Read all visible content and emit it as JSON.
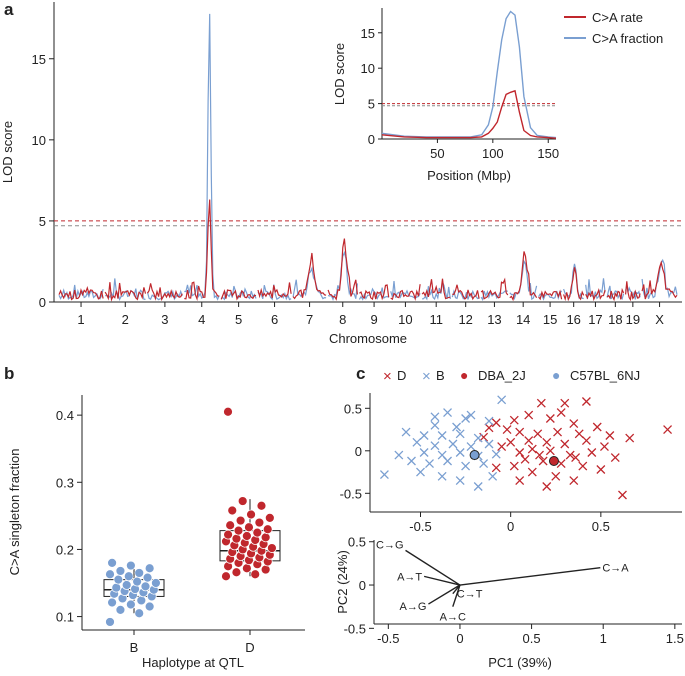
{
  "chart_data": [
    {
      "panel": "a",
      "type": "line",
      "ylabel": "LOD score",
      "xlabel": "Chromosome",
      "ylim": [
        0,
        18.5
      ],
      "yticks": [
        0,
        5,
        10,
        15
      ],
      "chromosomes": [
        "1",
        "2",
        "3",
        "4",
        "5",
        "6",
        "7",
        "8",
        "9",
        "10",
        "11",
        "12",
        "13",
        "14",
        "15",
        "16",
        "17",
        "18",
        "19",
        "X"
      ],
      "threshold_red": 5.0,
      "threshold_gray": 4.7,
      "series": [
        {
          "name": "C>A rate",
          "color": "#c0272d"
        },
        {
          "name": "C>A fraction",
          "color": "#7a9fd1"
        }
      ],
      "peaks": [
        {
          "chrom": "4",
          "fraction": 18.0,
          "rate": 6.8
        },
        {
          "chrom": "7",
          "fraction": 2.0,
          "rate": 2.4
        },
        {
          "chrom": "8",
          "fraction": 3.0,
          "rate": 3.4
        },
        {
          "chrom": "14",
          "fraction": 2.4,
          "rate": 3.0
        },
        {
          "chrom": "16",
          "fraction": 2.2,
          "rate": 1.9
        },
        {
          "chrom": "X",
          "fraction": 2.0,
          "rate": 2.1
        }
      ]
    },
    {
      "panel": "a-inset",
      "type": "line",
      "xlabel": "Position (Mbp)",
      "ylabel": "LOD score",
      "xlim": [
        0,
        157
      ],
      "ylim": [
        0,
        18.5
      ],
      "xticks": [
        50,
        100,
        150
      ],
      "yticks": [
        0,
        5,
        10,
        15
      ],
      "series": [
        {
          "name": "C>A rate",
          "color": "#c0272d",
          "x": [
            0,
            20,
            40,
            60,
            80,
            90,
            96,
            100,
            104,
            108,
            112,
            116,
            120,
            124,
            128,
            134,
            140,
            150,
            157
          ],
          "y": [
            0.6,
            0.3,
            0.2,
            0.2,
            0.2,
            0.3,
            0.8,
            1.5,
            2.4,
            4.5,
            6.3,
            6.6,
            6.8,
            3.8,
            1.2,
            0.5,
            0.3,
            0.2,
            0.1
          ]
        },
        {
          "name": "C>A fraction",
          "color": "#7a9fd1",
          "x": [
            0,
            20,
            40,
            60,
            80,
            90,
            96,
            100,
            104,
            108,
            112,
            116,
            120,
            124,
            128,
            134,
            140,
            150,
            157
          ],
          "y": [
            0.8,
            0.4,
            0.3,
            0.3,
            0.3,
            0.6,
            2.0,
            4.5,
            9.5,
            14.0,
            17.0,
            18.0,
            17.5,
            13.0,
            6.0,
            1.6,
            0.5,
            0.3,
            0.2
          ]
        }
      ]
    },
    {
      "panel": "b",
      "type": "boxplot",
      "xlabel": "Haplotype at QTL",
      "ylabel": "C>A singleton fraction",
      "ylim": [
        0.08,
        0.43
      ],
      "yticks": [
        0.1,
        0.2,
        0.3,
        0.4
      ],
      "groups": [
        {
          "name": "B",
          "color": "#7a9fd1",
          "q1": 0.13,
          "median": 0.14,
          "q3": 0.155,
          "min": 0.105,
          "max": 0.178,
          "points": [
            0.092,
            0.105,
            0.11,
            0.115,
            0.118,
            0.121,
            0.124,
            0.127,
            0.13,
            0.132,
            0.134,
            0.136,
            0.138,
            0.14,
            0.141,
            0.143,
            0.145,
            0.147,
            0.15,
            0.152,
            0.155,
            0.158,
            0.16,
            0.163,
            0.165,
            0.168,
            0.172,
            0.176,
            0.18
          ]
        },
        {
          "name": "D",
          "color": "#c0272d",
          "q1": 0.183,
          "median": 0.198,
          "q3": 0.228,
          "min": 0.16,
          "max": 0.275,
          "points": [
            0.16,
            0.163,
            0.166,
            0.17,
            0.172,
            0.175,
            0.178,
            0.18,
            0.182,
            0.184,
            0.186,
            0.188,
            0.19,
            0.192,
            0.194,
            0.196,
            0.198,
            0.2,
            0.202,
            0.204,
            0.206,
            0.208,
            0.21,
            0.212,
            0.214,
            0.216,
            0.218,
            0.22,
            0.222,
            0.225,
            0.228,
            0.23,
            0.233,
            0.236,
            0.24,
            0.243,
            0.247,
            0.252,
            0.258,
            0.265,
            0.272,
            0.405
          ]
        }
      ]
    },
    {
      "panel": "c-top",
      "type": "scatter",
      "legend": [
        "D",
        "B",
        "DBA_2J",
        "C57BL_6NJ"
      ],
      "legend_markers": [
        "×",
        "×",
        "●",
        "●"
      ],
      "xlim": [
        -0.78,
        0.95
      ],
      "ylim": [
        -0.72,
        0.68
      ],
      "xticks": [
        -0.5,
        0,
        0.5
      ],
      "yticks": [
        -0.5,
        0,
        0.5
      ],
      "series": [
        {
          "name": "D",
          "color": "#c0272d",
          "marker": "x",
          "points": [
            [
              0.3,
              0.56
            ],
            [
              0.17,
              0.56
            ],
            [
              0.1,
              0.42
            ],
            [
              0.02,
              0.36
            ],
            [
              0.22,
              0.38
            ],
            [
              0.35,
              0.32
            ],
            [
              0.48,
              0.28
            ],
            [
              -0.12,
              0.27
            ],
            [
              -0.08,
              0.33
            ],
            [
              0.05,
              0.22
            ],
            [
              0.15,
              0.2
            ],
            [
              0.26,
              0.22
            ],
            [
              0.38,
              0.2
            ],
            [
              0.55,
              0.18
            ],
            [
              0.66,
              0.15
            ],
            [
              0.0,
              0.1
            ],
            [
              0.1,
              0.12
            ],
            [
              0.2,
              0.1
            ],
            [
              0.3,
              0.08
            ],
            [
              0.42,
              0.12
            ],
            [
              0.52,
              0.05
            ],
            [
              -0.05,
              0.05
            ],
            [
              0.05,
              -0.02
            ],
            [
              0.12,
              0.02
            ],
            [
              0.22,
              0.0
            ],
            [
              0.33,
              -0.05
            ],
            [
              0.45,
              -0.02
            ],
            [
              0.58,
              -0.08
            ],
            [
              0.08,
              -0.1
            ],
            [
              0.18,
              -0.12
            ],
            [
              0.28,
              -0.15
            ],
            [
              0.4,
              -0.18
            ],
            [
              0.5,
              -0.22
            ],
            [
              0.02,
              -0.18
            ],
            [
              0.12,
              -0.25
            ],
            [
              0.25,
              -0.3
            ],
            [
              0.35,
              -0.35
            ],
            [
              -0.08,
              -0.2
            ],
            [
              0.05,
              -0.35
            ],
            [
              0.2,
              -0.42
            ],
            [
              0.62,
              -0.52
            ],
            [
              0.87,
              0.25
            ],
            [
              -0.15,
              0.16
            ],
            [
              0.42,
              0.58
            ],
            [
              0.28,
              0.45
            ],
            [
              -0.02,
              0.25
            ],
            [
              0.36,
              -0.08
            ],
            [
              0.16,
              -0.05
            ]
          ]
        },
        {
          "name": "B",
          "color": "#7a9fd1",
          "marker": "x",
          "points": [
            [
              -0.05,
              0.6
            ],
            [
              -0.35,
              0.45
            ],
            [
              -0.25,
              0.38
            ],
            [
              -0.42,
              0.3
            ],
            [
              -0.58,
              0.22
            ],
            [
              -0.48,
              0.18
            ],
            [
              -0.38,
              0.18
            ],
            [
              -0.28,
              0.2
            ],
            [
              -0.18,
              0.15
            ],
            [
              -0.52,
              0.1
            ],
            [
              -0.42,
              0.06
            ],
            [
              -0.32,
              0.08
            ],
            [
              -0.22,
              0.05
            ],
            [
              -0.12,
              0.08
            ],
            [
              -0.62,
              -0.05
            ],
            [
              -0.48,
              -0.02
            ],
            [
              -0.38,
              -0.05
            ],
            [
              -0.28,
              -0.02
            ],
            [
              -0.18,
              -0.06
            ],
            [
              -0.08,
              -0.04
            ],
            [
              -0.55,
              -0.12
            ],
            [
              -0.45,
              -0.15
            ],
            [
              -0.35,
              -0.12
            ],
            [
              -0.25,
              -0.18
            ],
            [
              -0.15,
              -0.15
            ],
            [
              -0.7,
              -0.28
            ],
            [
              -0.5,
              -0.25
            ],
            [
              -0.38,
              -0.3
            ],
            [
              -0.28,
              -0.35
            ],
            [
              -0.18,
              -0.42
            ],
            [
              -0.1,
              -0.3
            ],
            [
              -0.22,
              0.42
            ],
            [
              -0.12,
              0.35
            ],
            [
              -0.42,
              0.4
            ],
            [
              -0.3,
              0.28
            ]
          ]
        },
        {
          "name": "DBA_2J",
          "color": "#c0272d",
          "marker": "dot",
          "points": [
            [
              0.24,
              -0.12
            ]
          ]
        },
        {
          "name": "C57BL_6NJ",
          "color": "#7a9fd1",
          "marker": "dot",
          "points": [
            [
              -0.2,
              -0.05
            ]
          ]
        }
      ]
    },
    {
      "panel": "c-bottom",
      "type": "biplot",
      "xlabel": "PC1 (39%)",
      "ylabel": "PC2 (24%)",
      "xlim": [
        -0.6,
        1.55
      ],
      "ylim": [
        -0.45,
        0.52
      ],
      "xticks": [
        -0.5,
        0,
        0.5,
        1.0,
        1.5
      ],
      "yticks": [
        -0.5,
        0,
        0.5
      ],
      "vectors": [
        {
          "label": "C→G",
          "x": -0.38,
          "y": 0.4
        },
        {
          "label": "A→T",
          "x": -0.25,
          "y": 0.1
        },
        {
          "label": "A→G",
          "x": -0.22,
          "y": -0.22
        },
        {
          "label": "A→C",
          "x": -0.05,
          "y": -0.25
        },
        {
          "label": "C→T",
          "x": -0.05,
          "y": -0.1
        },
        {
          "label": "C→A",
          "x": 0.98,
          "y": 0.2
        }
      ]
    }
  ],
  "panels": {
    "a": "a",
    "b": "b",
    "c": "c"
  }
}
